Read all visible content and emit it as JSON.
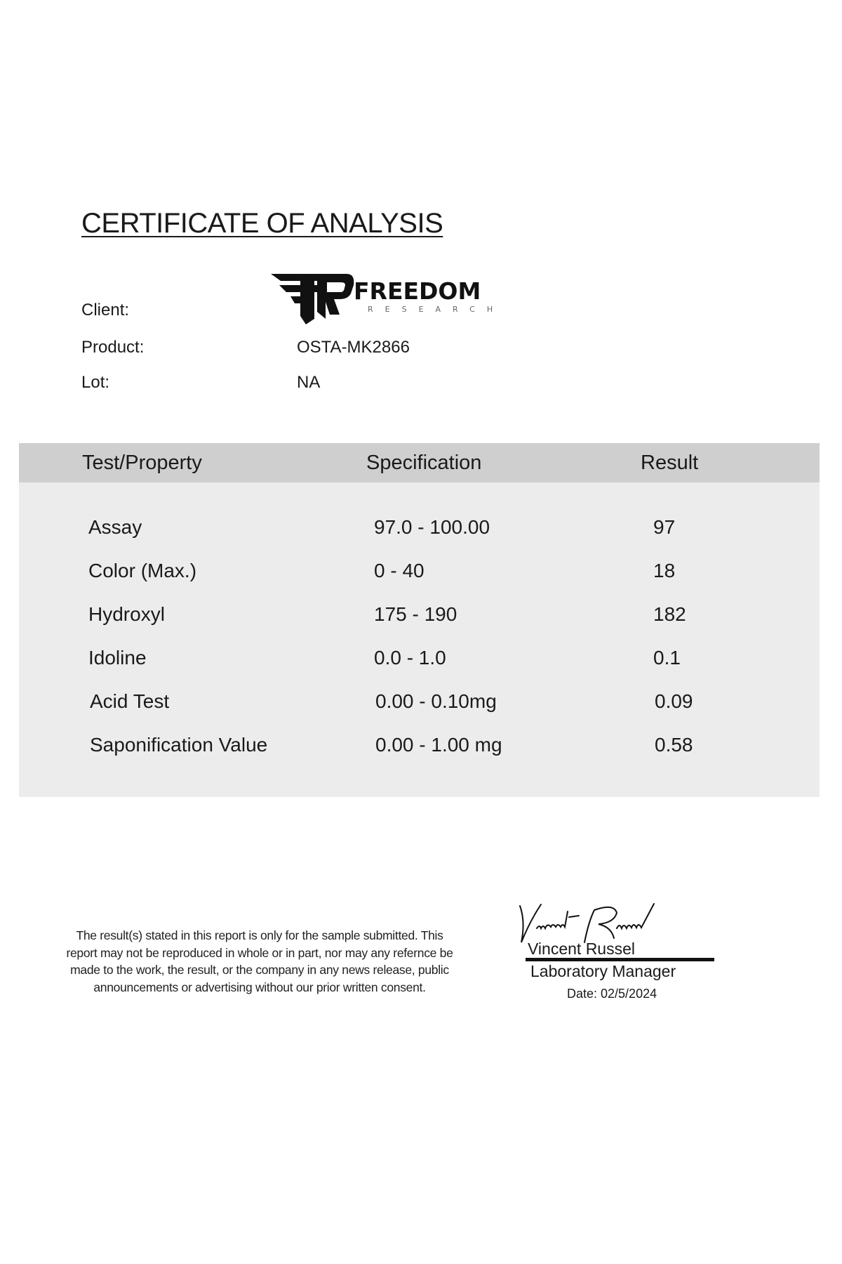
{
  "title": "CERTIFICATE OF ANALYSIS",
  "client": {
    "label": "Client:",
    "logo_text": "FREEDOM",
    "logo_subtext": "RESEARCH"
  },
  "product": {
    "label": "Product:",
    "value": "OSTA-MK2866"
  },
  "lot": {
    "label": "Lot:",
    "value": "NA"
  },
  "table": {
    "headers": [
      "Test/Property",
      "Specification",
      "Result"
    ],
    "rows": [
      [
        "Assay",
        "97.0 - 100.00",
        "97"
      ],
      [
        "Color (Max.)",
        "0 - 40",
        "18"
      ],
      [
        "Hydroxyl",
        "175 - 190",
        "182"
      ],
      [
        "Idoline",
        "0.0 - 1.0",
        "0.1"
      ],
      [
        "Acid Test",
        "0.00 - 0.10mg",
        "0.09"
      ],
      [
        "Saponification Value",
        "0.00 - 1.00 mg",
        "0.58"
      ]
    ]
  },
  "disclaimer": "The result(s) stated in this report is only for the sample submitted. This report may not be reproduced in whole or in part, nor may any refernce be made to the work, the result, or the company in any news release, public announcements or advertising without our prior written consent.",
  "signature": {
    "signed_name": "Vincent Russel",
    "name": "Vincent Russel",
    "title": "Laboratory Manager",
    "date": "Date:  02/5/2024"
  }
}
